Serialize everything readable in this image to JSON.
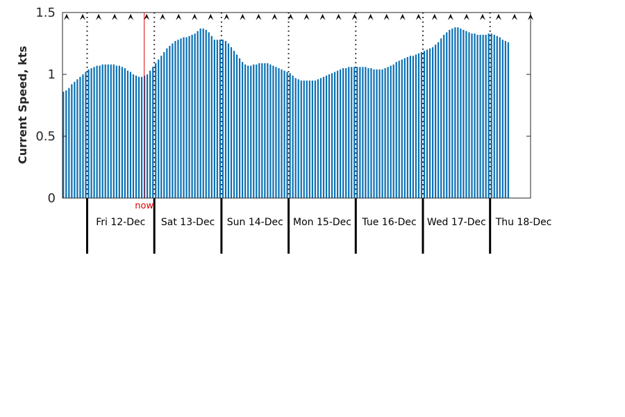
{
  "chart_data": {
    "type": "bar",
    "title": "",
    "xlabel": "",
    "ylabel": "Current Speed, kts",
    "ylim": [
      0,
      1.5
    ],
    "yticks": [
      0,
      0.5,
      1,
      1.5
    ],
    "ytick_labels": [
      "0",
      "0.5",
      "1",
      "1.5"
    ],
    "grid": false,
    "bar_color": "#0a70b3",
    "samples_per_day": 24,
    "start_offset_days": -0.375,
    "now_position_days": 0.85,
    "now_label": "now",
    "now_color": "#e00000",
    "days": [
      "Fri 12-Dec",
      "Sat 13-Dec",
      "Sun 14-Dec",
      "Mon 15-Dec",
      "Tue 16-Dec",
      "Wed 17-Dec",
      "Thu 18-Dec"
    ],
    "direction_arrow_count": 30,
    "values": [
      0.86,
      0.87,
      0.89,
      0.92,
      0.94,
      0.96,
      0.98,
      1.0,
      1.02,
      1.04,
      1.05,
      1.06,
      1.07,
      1.07,
      1.08,
      1.08,
      1.08,
      1.08,
      1.08,
      1.07,
      1.07,
      1.06,
      1.05,
      1.03,
      1.02,
      1.0,
      0.99,
      0.98,
      0.98,
      0.99,
      1.0,
      1.03,
      1.06,
      1.09,
      1.12,
      1.15,
      1.18,
      1.21,
      1.23,
      1.25,
      1.27,
      1.28,
      1.29,
      1.3,
      1.3,
      1.31,
      1.32,
      1.33,
      1.35,
      1.37,
      1.37,
      1.36,
      1.34,
      1.31,
      1.28,
      1.28,
      1.28,
      1.28,
      1.27,
      1.25,
      1.22,
      1.19,
      1.16,
      1.13,
      1.1,
      1.08,
      1.07,
      1.07,
      1.08,
      1.08,
      1.09,
      1.09,
      1.09,
      1.09,
      1.08,
      1.07,
      1.06,
      1.05,
      1.04,
      1.03,
      1.02,
      1.01,
      0.99,
      0.97,
      0.96,
      0.95,
      0.95,
      0.95,
      0.95,
      0.95,
      0.95,
      0.96,
      0.97,
      0.98,
      0.99,
      1.0,
      1.01,
      1.02,
      1.03,
      1.04,
      1.05,
      1.05,
      1.06,
      1.06,
      1.06,
      1.06,
      1.06,
      1.06,
      1.06,
      1.05,
      1.05,
      1.04,
      1.04,
      1.04,
      1.04,
      1.05,
      1.06,
      1.07,
      1.08,
      1.1,
      1.11,
      1.12,
      1.13,
      1.14,
      1.15,
      1.15,
      1.16,
      1.17,
      1.18,
      1.19,
      1.2,
      1.21,
      1.22,
      1.24,
      1.26,
      1.29,
      1.32,
      1.34,
      1.36,
      1.37,
      1.38,
      1.38,
      1.37,
      1.36,
      1.35,
      1.34,
      1.33,
      1.33,
      1.32,
      1.32,
      1.32,
      1.32,
      1.33,
      1.33,
      1.32,
      1.31,
      1.3,
      1.28,
      1.27,
      1.26
    ]
  }
}
